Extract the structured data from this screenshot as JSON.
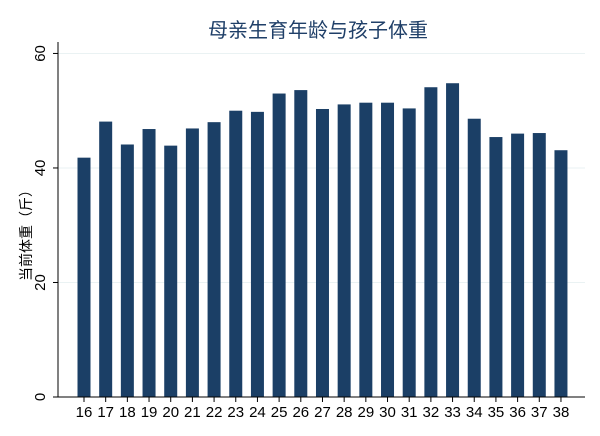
{
  "chart_data": {
    "type": "bar",
    "title": "母亲生育年龄与孩子体重",
    "xlabel": "",
    "ylabel": "当前体重（斤）",
    "categories": [
      "16",
      "17",
      "18",
      "19",
      "20",
      "21",
      "22",
      "23",
      "24",
      "25",
      "26",
      "27",
      "28",
      "29",
      "30",
      "31",
      "32",
      "33",
      "34",
      "35",
      "36",
      "37",
      "38"
    ],
    "values": [
      41.8,
      48.1,
      44.1,
      46.8,
      43.9,
      46.9,
      48.0,
      50.0,
      49.8,
      53.0,
      53.6,
      50.3,
      51.1,
      51.4,
      51.4,
      50.4,
      54.1,
      54.8,
      48.6,
      45.4,
      46.0,
      46.1,
      43.1
    ],
    "ylim": [
      0,
      62
    ],
    "yticks": [
      0,
      20,
      40,
      60
    ],
    "grid": true,
    "legend": "none",
    "colors": {
      "bar": "#1b3f66",
      "title": "#1f3f68",
      "grid": "#eaf2f3"
    }
  }
}
